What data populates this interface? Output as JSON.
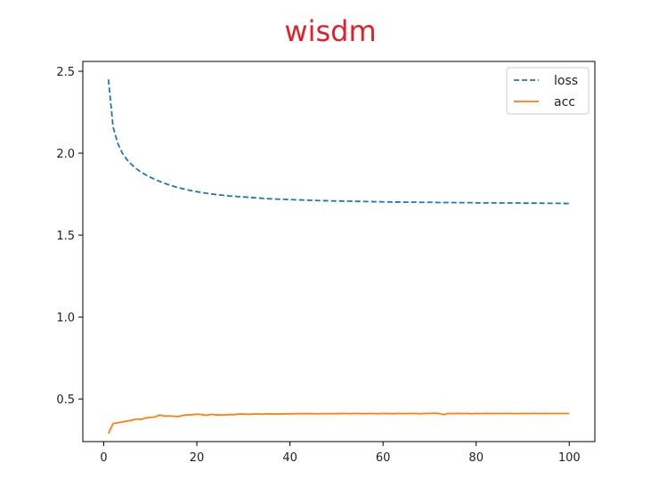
{
  "chart_data": {
    "type": "line",
    "title": "wisdm",
    "title_color": "#e0202a",
    "xlabel": "",
    "ylabel": "",
    "xlim": [
      -4.5,
      105.5
    ],
    "ylim": [
      0.24,
      2.56
    ],
    "xticks": [
      0,
      20,
      40,
      60,
      80,
      100
    ],
    "yticks": [
      0.5,
      1.0,
      1.5,
      2.0,
      2.5
    ],
    "xtick_labels": [
      "0",
      "20",
      "40",
      "60",
      "80",
      "100"
    ],
    "ytick_labels": [
      "0.5",
      "1.0",
      "1.5",
      "2.0",
      "2.5"
    ],
    "grid": false,
    "legend_position": "top-right",
    "x": [
      1,
      2,
      3,
      4,
      5,
      6,
      7,
      8,
      9,
      10,
      11,
      12,
      13,
      14,
      15,
      16,
      17,
      18,
      19,
      20,
      21,
      22,
      23,
      24,
      25,
      26,
      27,
      28,
      29,
      30,
      31,
      32,
      33,
      34,
      35,
      36,
      37,
      38,
      39,
      40,
      41,
      42,
      43,
      44,
      45,
      46,
      47,
      48,
      49,
      50,
      51,
      52,
      53,
      54,
      55,
      56,
      57,
      58,
      59,
      60,
      61,
      62,
      63,
      64,
      65,
      66,
      67,
      68,
      69,
      70,
      71,
      72,
      73,
      74,
      75,
      76,
      77,
      78,
      79,
      80,
      81,
      82,
      83,
      84,
      85,
      86,
      87,
      88,
      89,
      90,
      91,
      92,
      93,
      94,
      95,
      96,
      97,
      98,
      99,
      100
    ],
    "series": [
      {
        "name": "loss",
        "color": "#1f77b4",
        "style": "dashed",
        "values": [
          2.45,
          2.16,
          2.06,
          2.0,
          1.96,
          1.93,
          1.905,
          1.885,
          1.868,
          1.853,
          1.84,
          1.828,
          1.817,
          1.807,
          1.798,
          1.79,
          1.783,
          1.776,
          1.77,
          1.765,
          1.76,
          1.756,
          1.752,
          1.748,
          1.745,
          1.742,
          1.739,
          1.737,
          1.735,
          1.733,
          1.731,
          1.729,
          1.727,
          1.725,
          1.723,
          1.721,
          1.72,
          1.719,
          1.718,
          1.717,
          1.716,
          1.715,
          1.714,
          1.713,
          1.712,
          1.711,
          1.71,
          1.71,
          1.709,
          1.708,
          1.708,
          1.707,
          1.707,
          1.706,
          1.706,
          1.705,
          1.705,
          1.704,
          1.704,
          1.703,
          1.703,
          1.702,
          1.702,
          1.702,
          1.701,
          1.701,
          1.701,
          1.7,
          1.7,
          1.7,
          1.7,
          1.699,
          1.699,
          1.699,
          1.699,
          1.698,
          1.698,
          1.698,
          1.698,
          1.697,
          1.697,
          1.697,
          1.697,
          1.697,
          1.696,
          1.696,
          1.696,
          1.696,
          1.696,
          1.695,
          1.695,
          1.695,
          1.695,
          1.695,
          1.694,
          1.694,
          1.694,
          1.694,
          1.693,
          1.693
        ]
      },
      {
        "name": "acc",
        "color": "#ff7f0e",
        "style": "solid",
        "values": [
          0.29,
          0.35,
          0.355,
          0.36,
          0.365,
          0.37,
          0.378,
          0.375,
          0.384,
          0.388,
          0.39,
          0.402,
          0.396,
          0.396,
          0.395,
          0.392,
          0.4,
          0.403,
          0.404,
          0.407,
          0.405,
          0.4,
          0.406,
          0.404,
          0.402,
          0.403,
          0.405,
          0.404,
          0.408,
          0.408,
          0.406,
          0.408,
          0.409,
          0.407,
          0.41,
          0.408,
          0.409,
          0.408,
          0.41,
          0.409,
          0.41,
          0.411,
          0.41,
          0.411,
          0.41,
          0.409,
          0.411,
          0.41,
          0.411,
          0.41,
          0.412,
          0.411,
          0.41,
          0.412,
          0.411,
          0.41,
          0.412,
          0.411,
          0.41,
          0.412,
          0.411,
          0.41,
          0.412,
          0.411,
          0.411,
          0.412,
          0.411,
          0.41,
          0.412,
          0.412,
          0.413,
          0.412,
          0.404,
          0.412,
          0.411,
          0.412,
          0.411,
          0.412,
          0.41,
          0.412,
          0.411,
          0.412,
          0.411,
          0.412,
          0.411,
          0.412,
          0.412,
          0.411,
          0.411,
          0.412,
          0.411,
          0.412,
          0.412,
          0.411,
          0.412,
          0.411,
          0.412,
          0.412,
          0.411,
          0.412
        ]
      }
    ]
  }
}
